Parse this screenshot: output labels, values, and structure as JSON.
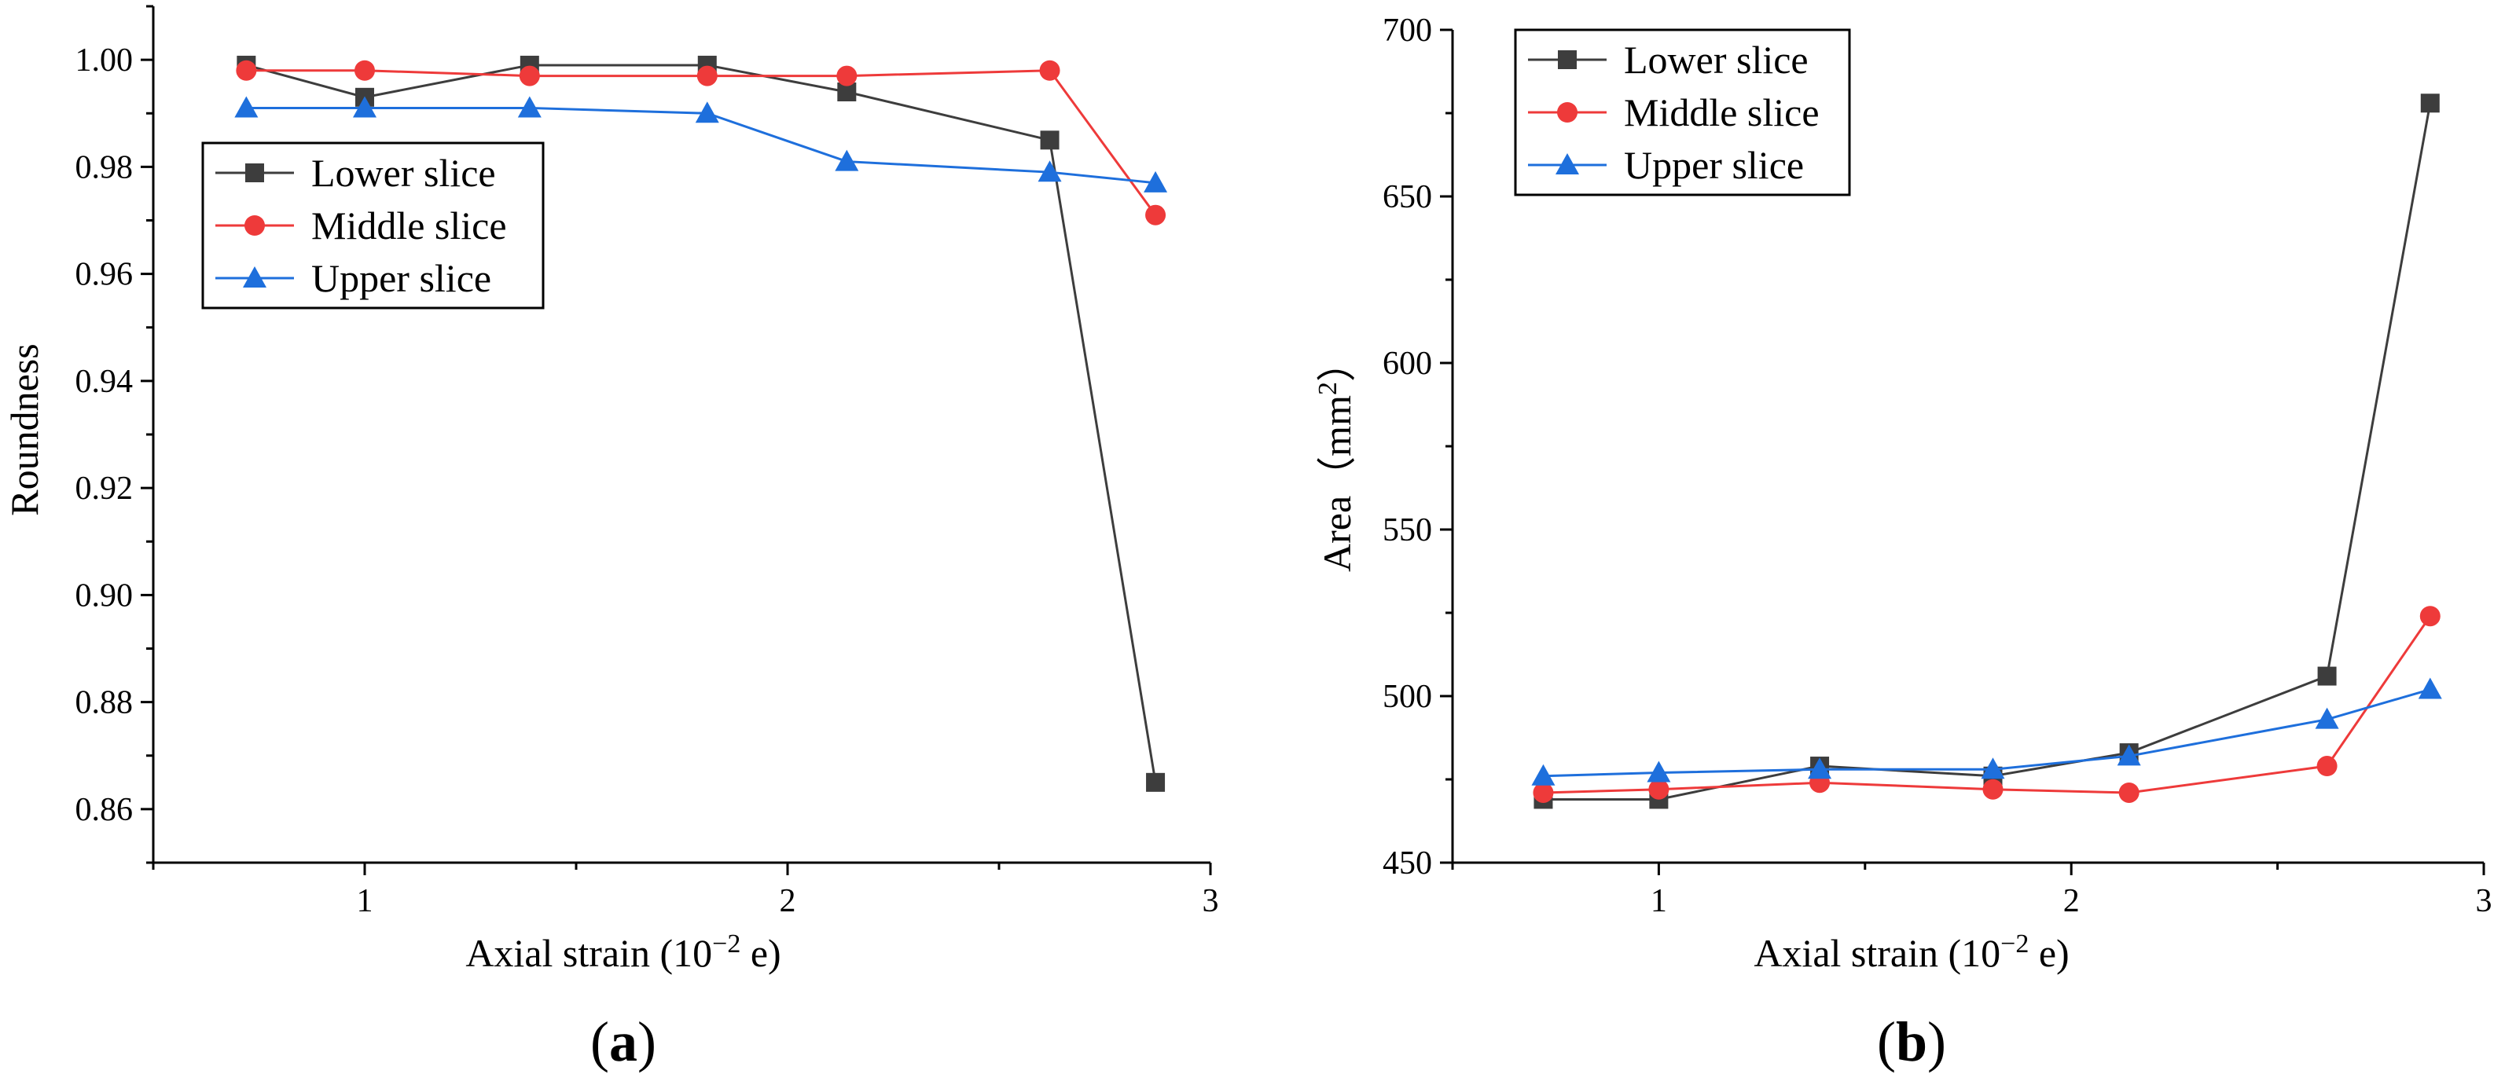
{
  "chart_data": [
    {
      "type": "line",
      "panel_label": "a",
      "title": "",
      "xlabel": "Axial strain (10",
      "xlabel_sup": "−2",
      "xlabel_suffix": " e)",
      "ylabel": "Roundness",
      "xlim": [
        0.5,
        3.0
      ],
      "ylim": [
        0.85,
        1.01
      ],
      "xticks": [
        1,
        2,
        3
      ],
      "xtick_labels": [
        "1",
        "2",
        "3"
      ],
      "yticks": [
        0.86,
        0.88,
        0.9,
        0.92,
        0.94,
        0.96,
        0.98,
        1.0
      ],
      "ytick_labels": [
        "0.86",
        "0.88",
        "0.90",
        "0.92",
        "0.94",
        "0.96",
        "0.98",
        "1.00"
      ],
      "legend_position": "upper-left",
      "x": [
        0.72,
        1.0,
        1.39,
        1.81,
        2.14,
        2.62,
        2.87
      ],
      "series": [
        {
          "name": "Lower slice",
          "color": "#3d3d3d",
          "marker": "square",
          "values": [
            0.999,
            0.993,
            0.999,
            0.999,
            0.994,
            0.985,
            0.865
          ]
        },
        {
          "name": "Middle slice",
          "color": "#ee3a3a",
          "marker": "circle",
          "values": [
            0.998,
            0.998,
            0.997,
            0.997,
            0.997,
            0.998,
            0.971
          ]
        },
        {
          "name": "Upper slice",
          "color": "#1e6fdc",
          "marker": "triangle",
          "values": [
            0.991,
            0.991,
            0.991,
            0.99,
            0.981,
            0.979,
            0.977
          ]
        }
      ]
    },
    {
      "type": "line",
      "panel_label": "b",
      "title": "",
      "xlabel": "Axial strain (10",
      "xlabel_sup": "−2",
      "xlabel_suffix": " e)",
      "ylabel": "Area（mm",
      "ylabel_sup": "2",
      "ylabel_suffix": "）",
      "xlim": [
        0.5,
        3.0
      ],
      "ylim": [
        450,
        700
      ],
      "xticks": [
        1,
        2,
        3
      ],
      "xtick_labels": [
        "1",
        "2",
        "3"
      ],
      "yticks": [
        450,
        500,
        550,
        600,
        650,
        700
      ],
      "ytick_labels": [
        "450",
        "500",
        "550",
        "600",
        "650",
        "700"
      ],
      "legend_position": "top-left",
      "x": [
        0.72,
        1.0,
        1.39,
        1.81,
        2.14,
        2.62,
        2.87
      ],
      "series": [
        {
          "name": "Lower slice",
          "color": "#3d3d3d",
          "marker": "square",
          "values": [
            469,
            469,
            479,
            476,
            483,
            506,
            678
          ]
        },
        {
          "name": "Middle slice",
          "color": "#ee3a3a",
          "marker": "circle",
          "values": [
            471,
            472,
            474,
            472,
            471,
            479,
            524
          ]
        },
        {
          "name": "Upper slice",
          "color": "#1e6fdc",
          "marker": "triangle",
          "values": [
            476,
            477,
            478,
            478,
            482,
            493,
            502
          ]
        }
      ]
    }
  ]
}
